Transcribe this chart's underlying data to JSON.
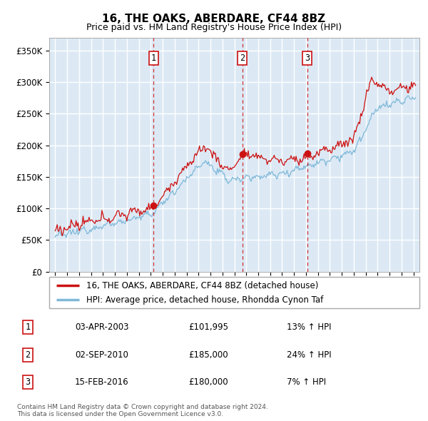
{
  "title": "16, THE OAKS, ABERDARE, CF44 8BZ",
  "subtitle": "Price paid vs. HM Land Registry's House Price Index (HPI)",
  "ylabel_ticks": [
    "£0",
    "£50K",
    "£100K",
    "£150K",
    "£200K",
    "£250K",
    "£300K",
    "£350K"
  ],
  "ytick_values": [
    0,
    50000,
    100000,
    150000,
    200000,
    250000,
    300000,
    350000
  ],
  "ylim": [
    0,
    370000
  ],
  "xlim_start": 1994.5,
  "xlim_end": 2025.5,
  "plot_bg_color": "#dce9f5",
  "grid_color": "#ffffff",
  "line_color_red": "#cc1111",
  "line_color_blue": "#7fb8d8",
  "vline_color": "#cc1111",
  "transactions": [
    {
      "year": 2003.25,
      "price": 101995,
      "label": "1"
    },
    {
      "year": 2010.67,
      "price": 185000,
      "label": "2"
    },
    {
      "year": 2016.12,
      "price": 180000,
      "label": "3"
    }
  ],
  "legend_entries": [
    "16, THE OAKS, ABERDARE, CF44 8BZ (detached house)",
    "HPI: Average price, detached house, Rhondda Cynon Taf"
  ],
  "table_data": [
    [
      "1",
      "03-APR-2003",
      "£101,995",
      "13% ↑ HPI"
    ],
    [
      "2",
      "02-SEP-2010",
      "£185,000",
      "24% ↑ HPI"
    ],
    [
      "3",
      "15-FEB-2016",
      "£180,000",
      "7% ↑ HPI"
    ]
  ],
  "footnote": "Contains HM Land Registry data © Crown copyright and database right 2024.\nThis data is licensed under the Open Government Licence v3.0."
}
